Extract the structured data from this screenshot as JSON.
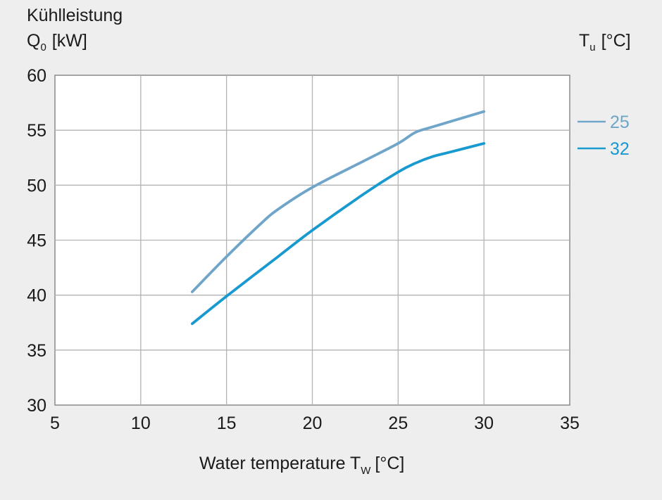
{
  "chart_data": {
    "type": "line",
    "y_title_line1": "Kühlleistung",
    "y_title_symbol": "Q",
    "y_title_subscript": "0",
    "y_title_unit": "[kW]",
    "legend_title_symbol": "T",
    "legend_title_subscript": "u",
    "legend_title_unit": "[°C]",
    "x_title_text": "Water temperature T",
    "x_title_subscript": "W",
    "x_title_unit": "[°C]",
    "xlim": [
      5,
      35
    ],
    "ylim": [
      30,
      60
    ],
    "x_ticks": [
      "5",
      "10",
      "15",
      "20",
      "25",
      "30",
      "35"
    ],
    "y_ticks": [
      "30",
      "35",
      "40",
      "45",
      "50",
      "55",
      "60"
    ],
    "grid": true,
    "legend_position": "right",
    "series": [
      {
        "name": "25",
        "color": "#6fa5c9",
        "x": [
          13,
          15,
          17,
          18,
          20,
          23,
          25,
          26,
          27,
          30
        ],
        "y": [
          40.3,
          43.5,
          46.5,
          47.8,
          49.8,
          52.2,
          53.8,
          54.8,
          55.3,
          56.7
        ]
      },
      {
        "name": "32",
        "color": "#1899cf",
        "x": [
          13,
          15,
          18,
          20,
          23,
          25,
          26,
          27,
          28,
          30
        ],
        "y": [
          37.4,
          39.9,
          43.5,
          45.9,
          49.2,
          51.2,
          52.0,
          52.6,
          53.0,
          53.8
        ]
      }
    ]
  }
}
